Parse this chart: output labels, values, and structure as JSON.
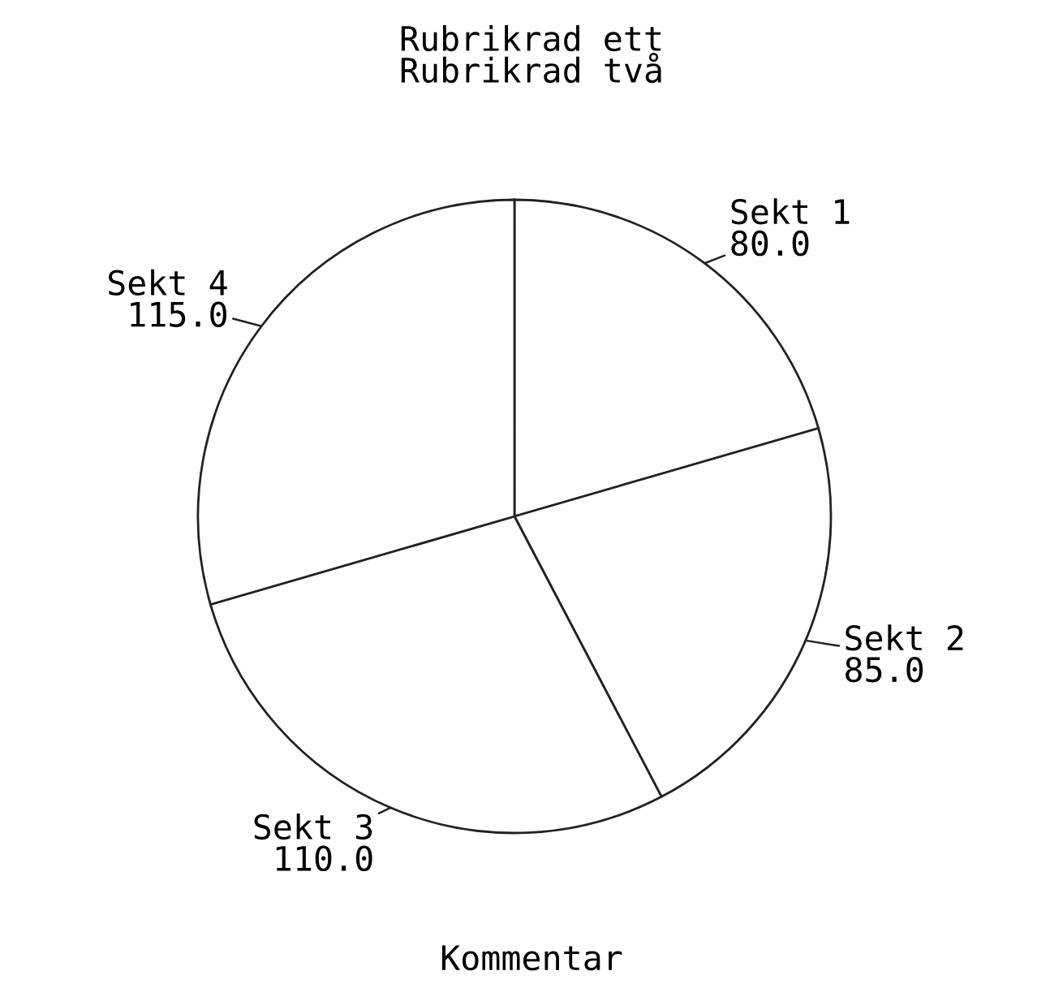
{
  "chart_data": {
    "type": "pie",
    "title": "Rubrikrad ett",
    "subtitle": "Rubrikrad två",
    "categories": [
      "Sekt 1",
      "Sekt 2",
      "Sekt 3",
      "Sekt 4"
    ],
    "values": [
      80,
      85,
      110,
      115
    ],
    "value_labels": [
      "80.0",
      "85.0",
      "110.0",
      "115.0"
    ],
    "colors": [
      "#ffffff",
      "#ffffff",
      "#ffffff",
      "#ffffff"
    ],
    "annotations": [
      "Kommentar"
    ],
    "legend": false
  }
}
